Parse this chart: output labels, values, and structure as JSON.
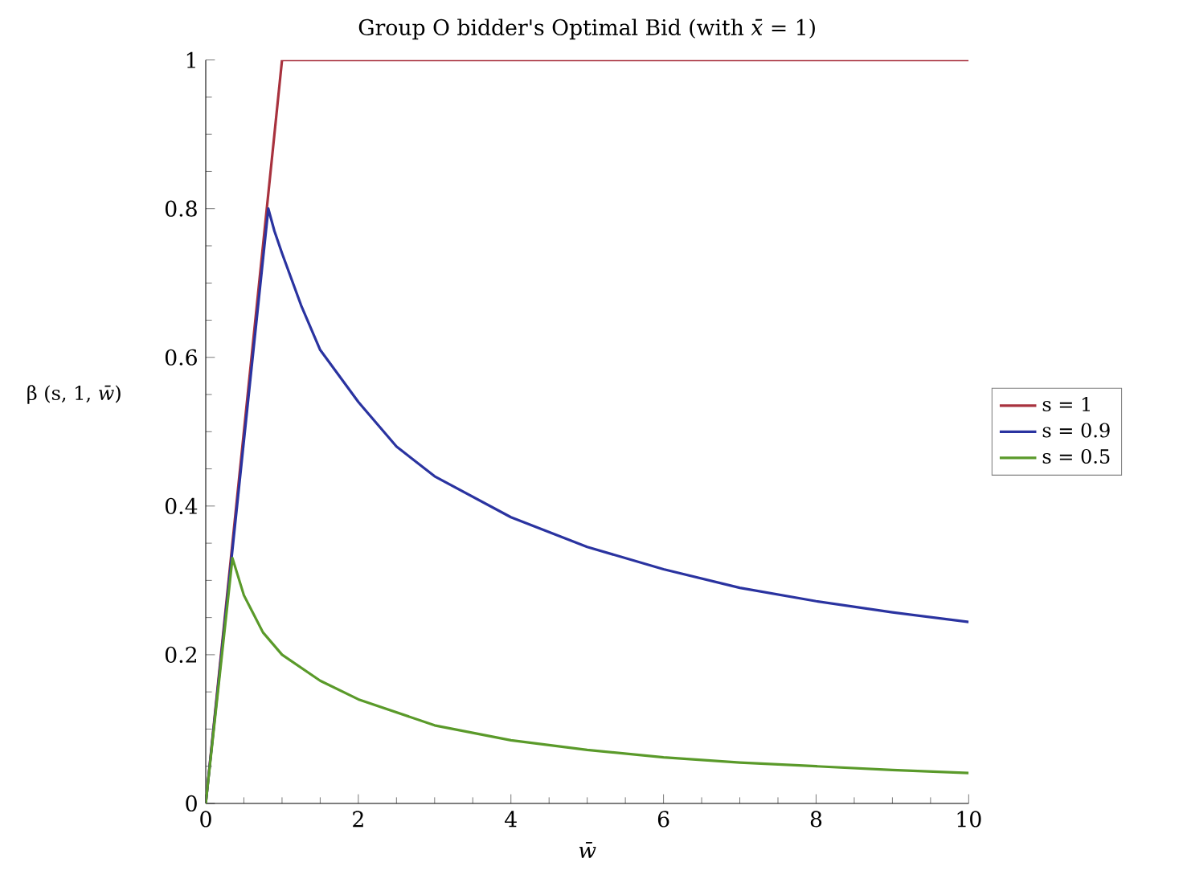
{
  "chart_data": {
    "type": "line",
    "title": "Group O bidder's Optimal Bid (with *x̄* = 1)",
    "xlabel": "w̄",
    "ylabel": "β (s, 1, *w̄*)",
    "xlim": [
      0,
      10
    ],
    "ylim": [
      0,
      1
    ],
    "xticks": [
      0,
      2,
      4,
      6,
      8,
      10
    ],
    "yticks": [
      0,
      0.2,
      0.4,
      0.6,
      0.8,
      1
    ],
    "legend": "right",
    "series": [
      {
        "name": "s = 1",
        "color": "#a8323e",
        "x": [
          0,
          1,
          10
        ],
        "values": [
          0,
          1,
          1
        ]
      },
      {
        "name": "s = 0.9",
        "color": "#2a33a0",
        "x": [
          0,
          0.82,
          0.9,
          1,
          1.25,
          1.5,
          2,
          2.5,
          3,
          4,
          5,
          6,
          7,
          8,
          9,
          10
        ],
        "values": [
          0,
          0.8,
          0.77,
          0.74,
          0.67,
          0.61,
          0.54,
          0.48,
          0.44,
          0.385,
          0.345,
          0.315,
          0.29,
          0.272,
          0.257,
          0.244
        ]
      },
      {
        "name": "s = 0.5",
        "color": "#5a9a2a",
        "x": [
          0,
          0.35,
          0.5,
          0.75,
          1,
          1.5,
          2,
          3,
          4,
          5,
          6,
          7,
          8,
          9,
          10
        ],
        "values": [
          0,
          0.33,
          0.28,
          0.23,
          0.2,
          0.165,
          0.14,
          0.105,
          0.085,
          0.072,
          0.062,
          0.055,
          0.05,
          0.045,
          0.041
        ]
      }
    ]
  }
}
